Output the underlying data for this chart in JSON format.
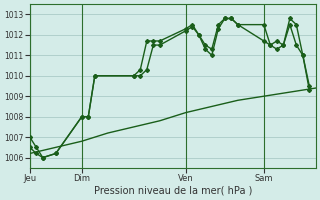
{
  "bg_color": "#d4ece8",
  "grid_color": "#b0d0cc",
  "line_color": "#1a5e1a",
  "marker_color": "#1a5e1a",
  "xlabel": "Pression niveau de la mer( hPa )",
  "ylim": [
    1005.5,
    1013.5
  ],
  "yticks": [
    1006,
    1007,
    1008,
    1009,
    1010,
    1011,
    1012,
    1013
  ],
  "day_labels": [
    "Jeu",
    "Dim",
    "Ven",
    "Sam"
  ],
  "day_positions": [
    0,
    8,
    24,
    36
  ],
  "xlim": [
    0,
    44
  ],
  "series1": {
    "x": [
      0,
      1,
      2,
      4,
      8,
      9,
      10,
      16,
      17,
      18,
      19,
      20,
      24,
      25,
      26,
      27,
      28,
      29,
      30,
      31,
      32,
      36,
      37,
      38,
      39,
      40,
      41,
      42,
      43
    ],
    "y": [
      1007.0,
      1006.5,
      1006.0,
      1006.2,
      1008.0,
      1008.0,
      1010.0,
      1010.0,
      1010.3,
      1011.7,
      1011.7,
      1011.7,
      1012.3,
      1012.5,
      1012.0,
      1011.5,
      1011.3,
      1012.5,
      1012.8,
      1012.8,
      1012.5,
      1012.5,
      1011.5,
      1011.7,
      1011.5,
      1012.8,
      1012.5,
      1011.0,
      1009.5
    ]
  },
  "series2": {
    "x": [
      0,
      1,
      2,
      4,
      8,
      9,
      10,
      16,
      17,
      18,
      19,
      20,
      24,
      25,
      26,
      27,
      28,
      29,
      30,
      31,
      32,
      36,
      37,
      38,
      39,
      40,
      41,
      42,
      43
    ],
    "y": [
      1006.5,
      1006.2,
      1006.0,
      1006.2,
      1008.0,
      1008.0,
      1010.0,
      1010.0,
      1010.0,
      1010.3,
      1011.5,
      1011.5,
      1012.2,
      1012.4,
      1012.0,
      1011.3,
      1011.0,
      1012.3,
      1012.8,
      1012.8,
      1012.5,
      1011.7,
      1011.5,
      1011.3,
      1011.5,
      1012.5,
      1011.5,
      1011.0,
      1009.3
    ]
  },
  "series3": {
    "x": [
      0,
      4,
      8,
      12,
      16,
      20,
      24,
      28,
      32,
      36,
      40,
      44
    ],
    "y": [
      1006.2,
      1006.5,
      1006.8,
      1007.2,
      1007.5,
      1007.8,
      1008.2,
      1008.5,
      1008.8,
      1009.0,
      1009.2,
      1009.4
    ]
  }
}
